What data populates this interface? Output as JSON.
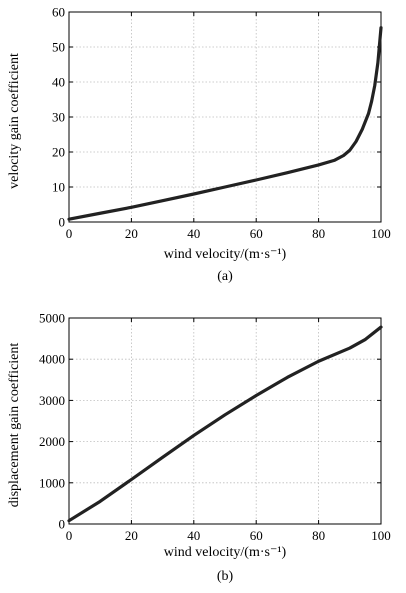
{
  "chart_data": [
    {
      "type": "line",
      "caption": "(a)",
      "xlabel": "wind velocity/(m·s⁻¹)",
      "ylabel": "velocity gain coefficient",
      "xlim": [
        0,
        100
      ],
      "ylim": [
        0,
        60
      ],
      "xticks": [
        0,
        20,
        40,
        60,
        80,
        100
      ],
      "yticks": [
        0,
        10,
        20,
        30,
        40,
        50,
        60
      ],
      "grid": true,
      "series": [
        {
          "color": "#222222",
          "x": [
            0,
            10,
            20,
            30,
            40,
            50,
            60,
            70,
            80,
            85,
            88,
            90,
            92,
            94,
            96,
            97,
            98,
            99,
            100
          ],
          "y": [
            0.8,
            2.5,
            4.2,
            6.1,
            8.0,
            10.0,
            12.0,
            14.1,
            16.3,
            17.6,
            19.0,
            20.5,
            23.0,
            26.5,
            31.0,
            34.5,
            39.0,
            45.5,
            55.5
          ]
        }
      ]
    },
    {
      "type": "line",
      "caption": "(b)",
      "xlabel": "wind velocity/(m·s⁻¹)",
      "ylabel": "displacement gain coefficient",
      "xlim": [
        0,
        100
      ],
      "ylim": [
        0,
        5000
      ],
      "xticks": [
        0,
        20,
        40,
        60,
        80,
        100
      ],
      "yticks": [
        0,
        1000,
        2000,
        3000,
        4000,
        5000
      ],
      "grid": true,
      "series": [
        {
          "color": "#222222",
          "x": [
            0,
            10,
            20,
            30,
            40,
            50,
            60,
            70,
            80,
            90,
            95,
            100
          ],
          "y": [
            80,
            550,
            1080,
            1620,
            2150,
            2650,
            3120,
            3560,
            3950,
            4270,
            4480,
            4780
          ]
        }
      ]
    }
  ]
}
